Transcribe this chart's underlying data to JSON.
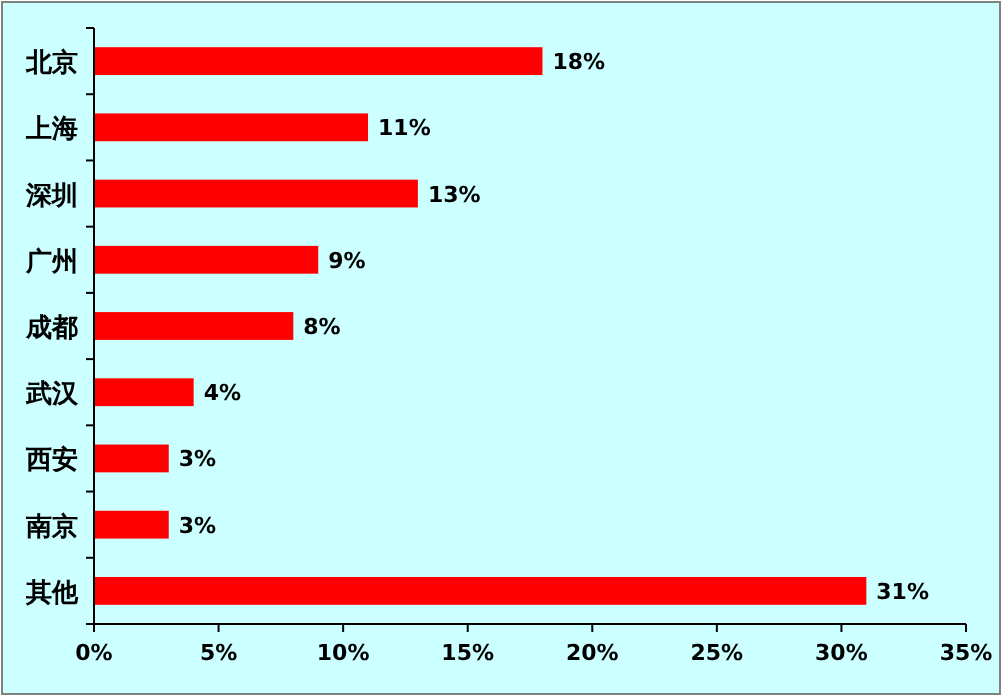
{
  "chart_data": {
    "type": "bar",
    "orientation": "horizontal",
    "categories": [
      "北京",
      "上海",
      "深圳",
      "广州",
      "成都",
      "武汉",
      "西安",
      "南京",
      "其他"
    ],
    "values": [
      18,
      11,
      13,
      9,
      8,
      4,
      3,
      3,
      31
    ],
    "value_labels": [
      "18%",
      "11%",
      "13%",
      "9%",
      "8%",
      "4%",
      "3%",
      "3%",
      "31%"
    ],
    "color": "#ff0000",
    "xlim": [
      0,
      35
    ],
    "xticks": [
      {
        "value": 0,
        "label": "0%"
      },
      {
        "value": 5,
        "label": "5%"
      },
      {
        "value": 10,
        "label": "10%"
      },
      {
        "value": 15,
        "label": "15%"
      },
      {
        "value": 20,
        "label": "20%"
      },
      {
        "value": 25,
        "label": "25%"
      },
      {
        "value": 30,
        "label": "30%"
      },
      {
        "value": 35,
        "label": "35%"
      }
    ]
  }
}
